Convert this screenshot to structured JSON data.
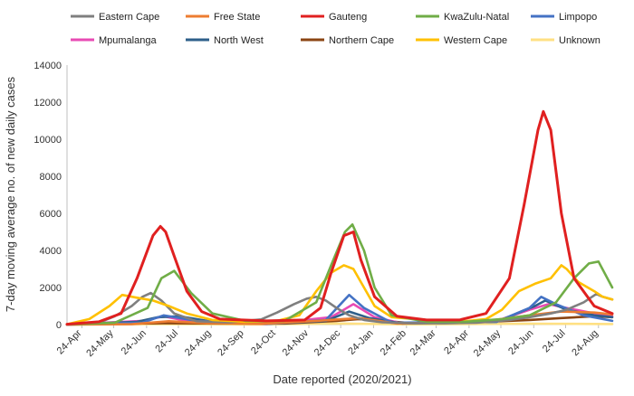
{
  "chart_data": {
    "type": "line",
    "title": "",
    "xlabel": "Date reported (2020/2021)",
    "ylabel": "7-day moving average no. of new daily cases",
    "ylim": [
      0,
      14000
    ],
    "yticks": [
      0,
      2000,
      4000,
      6000,
      8000,
      10000,
      12000,
      14000
    ],
    "ytick_labels": [
      "0",
      "2000",
      "4000",
      "6000",
      "8000",
      "10000",
      "12000",
      "14000"
    ],
    "x_range": [
      "2020-04-10",
      "2021-09-06"
    ],
    "xticks": [
      "2020-04-24",
      "2020-05-24",
      "2020-06-24",
      "2020-07-24",
      "2020-08-24",
      "2020-09-24",
      "2020-10-24",
      "2020-11-24",
      "2020-12-24",
      "2021-01-24",
      "2021-02-24",
      "2021-03-24",
      "2021-04-24",
      "2021-05-24",
      "2021-06-24",
      "2021-07-24",
      "2021-08-24"
    ],
    "xtick_labels": [
      "24-Apr",
      "24-May",
      "24-Jun",
      "24-Jul",
      "24-Aug",
      "24-Sep",
      "24-Oct",
      "24-Nov",
      "24-Dec",
      "24-Jan",
      "24-Feb",
      "24-Mar",
      "24-Apr",
      "24-May",
      "24-Jun",
      "24-Jul",
      "24-Aug"
    ],
    "grid": false,
    "legend_position": "top",
    "series": [
      {
        "name": "Eastern Cape",
        "color": "#7f7f7f",
        "x": [
          "2020-04-10",
          "2020-05-10",
          "2020-05-25",
          "2020-06-10",
          "2020-06-20",
          "2020-06-28",
          "2020-07-08",
          "2020-07-20",
          "2020-08-10",
          "2020-09-10",
          "2020-10-10",
          "2020-10-25",
          "2020-11-10",
          "2020-11-22",
          "2020-12-01",
          "2020-12-10",
          "2020-12-20",
          "2021-01-01",
          "2021-01-15",
          "2021-02-01",
          "2021-03-01",
          "2021-04-01",
          "2021-05-01",
          "2021-06-01",
          "2021-06-20",
          "2021-07-10",
          "2021-07-25",
          "2021-08-10",
          "2021-08-22",
          "2021-08-28",
          "2021-09-06"
        ],
        "y": [
          10,
          100,
          450,
          1000,
          1500,
          1700,
          1300,
          600,
          180,
          120,
          280,
          650,
          1100,
          1400,
          1500,
          1300,
          900,
          500,
          250,
          120,
          80,
          70,
          100,
          250,
          400,
          600,
          800,
          1200,
          1650,
          1500,
          1350
        ]
      },
      {
        "name": "Free State",
        "color": "#ed7d31",
        "x": [
          "2020-04-10",
          "2020-06-10",
          "2020-07-15",
          "2020-08-20",
          "2020-10-10",
          "2020-12-01",
          "2021-01-10",
          "2021-02-15",
          "2021-05-01",
          "2021-06-20",
          "2021-07-20",
          "2021-08-20",
          "2021-09-06"
        ],
        "y": [
          0,
          20,
          180,
          80,
          40,
          200,
          350,
          60,
          120,
          500,
          700,
          650,
          550
        ]
      },
      {
        "name": "Gauteng",
        "color": "#e02020",
        "x": [
          "2020-04-10",
          "2020-05-10",
          "2020-05-31",
          "2020-06-15",
          "2020-06-30",
          "2020-07-07",
          "2020-07-12",
          "2020-07-20",
          "2020-08-01",
          "2020-08-15",
          "2020-09-01",
          "2020-10-15",
          "2020-11-20",
          "2020-12-05",
          "2020-12-15",
          "2020-12-27",
          "2021-01-05",
          "2021-01-12",
          "2021-01-25",
          "2021-02-15",
          "2021-03-15",
          "2021-04-15",
          "2021-05-10",
          "2021-06-01",
          "2021-06-15",
          "2021-06-28",
          "2021-07-03",
          "2021-07-10",
          "2021-07-20",
          "2021-08-01",
          "2021-08-20",
          "2021-09-06"
        ],
        "y": [
          20,
          150,
          600,
          2500,
          4800,
          5300,
          5000,
          3700,
          1800,
          700,
          300,
          200,
          250,
          900,
          2800,
          4800,
          5000,
          3500,
          1500,
          450,
          250,
          250,
          600,
          2500,
          6500,
          10500,
          11500,
          10500,
          6000,
          2500,
          1000,
          600
        ]
      },
      {
        "name": "KwaZulu-Natal",
        "color": "#70ad47",
        "x": [
          "2020-04-10",
          "2020-05-25",
          "2020-06-25",
          "2020-07-08",
          "2020-07-20",
          "2020-08-05",
          "2020-08-25",
          "2020-09-25",
          "2020-11-01",
          "2020-12-01",
          "2020-12-15",
          "2020-12-28",
          "2021-01-04",
          "2021-01-15",
          "2021-01-25",
          "2021-02-10",
          "2021-03-15",
          "2021-04-20",
          "2021-05-25",
          "2021-06-20",
          "2021-07-15",
          "2021-08-01",
          "2021-08-15",
          "2021-08-24",
          "2021-09-06"
        ],
        "y": [
          10,
          100,
          900,
          2500,
          2900,
          1700,
          600,
          200,
          200,
          1200,
          3200,
          5000,
          5400,
          4000,
          2000,
          500,
          150,
          150,
          300,
          500,
          1200,
          2500,
          3300,
          3400,
          2000
        ]
      },
      {
        "name": "Limpopo",
        "color": "#4472c4",
        "x": [
          "2020-04-10",
          "2020-06-20",
          "2020-07-10",
          "2020-08-10",
          "2020-10-15",
          "2020-12-10",
          "2021-01-01",
          "2021-01-15",
          "2021-02-10",
          "2021-05-20",
          "2021-06-20",
          "2021-07-01",
          "2021-07-15",
          "2021-08-10",
          "2021-09-06"
        ],
        "y": [
          0,
          100,
          500,
          200,
          40,
          250,
          1600,
          900,
          100,
          150,
          900,
          1500,
          1100,
          500,
          200
        ]
      },
      {
        "name": "Mpumalanga",
        "color": "#e84bb4",
        "x": [
          "2020-04-10",
          "2020-06-20",
          "2020-07-10",
          "2020-08-05",
          "2020-10-15",
          "2020-12-15",
          "2021-01-05",
          "2021-01-25",
          "2021-02-20",
          "2021-05-20",
          "2021-06-20",
          "2021-07-08",
          "2021-07-25",
          "2021-08-20",
          "2021-09-06"
        ],
        "y": [
          0,
          200,
          450,
          150,
          30,
          400,
          1100,
          400,
          60,
          200,
          800,
          1100,
          900,
          600,
          500
        ]
      },
      {
        "name": "North West",
        "color": "#2e5f8a",
        "x": [
          "2020-04-10",
          "2020-06-15",
          "2020-07-05",
          "2020-07-25",
          "2020-08-25",
          "2020-10-15",
          "2020-12-10",
          "2021-01-01",
          "2021-01-20",
          "2021-02-20",
          "2021-05-20",
          "2021-06-25",
          "2021-07-05",
          "2021-07-25",
          "2021-08-20",
          "2021-09-06"
        ],
        "y": [
          0,
          150,
          400,
          450,
          150,
          40,
          200,
          700,
          350,
          60,
          150,
          1000,
          1300,
          800,
          500,
          400
        ]
      },
      {
        "name": "Northern Cape",
        "color": "#8b4513",
        "x": [
          "2020-04-10",
          "2020-07-10",
          "2020-09-01",
          "2020-11-01",
          "2020-12-20",
          "2021-01-10",
          "2021-03-01",
          "2021-05-10",
          "2021-06-20",
          "2021-07-20",
          "2021-08-20",
          "2021-09-06"
        ],
        "y": [
          0,
          80,
          60,
          60,
          200,
          300,
          80,
          150,
          250,
          350,
          450,
          400
        ]
      },
      {
        "name": "Western Cape",
        "color": "#ffc000",
        "x": [
          "2020-04-10",
          "2020-05-01",
          "2020-05-20",
          "2020-06-01",
          "2020-06-15",
          "2020-06-30",
          "2020-07-15",
          "2020-08-01",
          "2020-08-25",
          "2020-09-25",
          "2020-10-25",
          "2020-11-15",
          "2020-12-01",
          "2020-12-15",
          "2020-12-27",
          "2021-01-05",
          "2021-01-15",
          "2021-01-25",
          "2021-02-10",
          "2021-03-15",
          "2021-04-15",
          "2021-05-10",
          "2021-05-25",
          "2021-06-10",
          "2021-06-25",
          "2021-07-10",
          "2021-07-20",
          "2021-07-25",
          "2021-08-05",
          "2021-08-20",
          "2021-08-28",
          "2021-09-06"
        ],
        "y": [
          20,
          300,
          1000,
          1600,
          1450,
          1300,
          1000,
          600,
          250,
          150,
          200,
          500,
          1800,
          2800,
          3200,
          3000,
          2000,
          1000,
          400,
          250,
          150,
          300,
          800,
          1800,
          2200,
          2500,
          3200,
          3000,
          2300,
          1800,
          1500,
          1350
        ]
      },
      {
        "name": "Unknown",
        "color": "#ffe083",
        "x": [
          "2020-04-10",
          "2020-07-10",
          "2020-10-01",
          "2020-12-20",
          "2021-03-01",
          "2021-06-20",
          "2021-09-06"
        ],
        "y": [
          0,
          30,
          10,
          60,
          10,
          50,
          30
        ]
      }
    ]
  }
}
